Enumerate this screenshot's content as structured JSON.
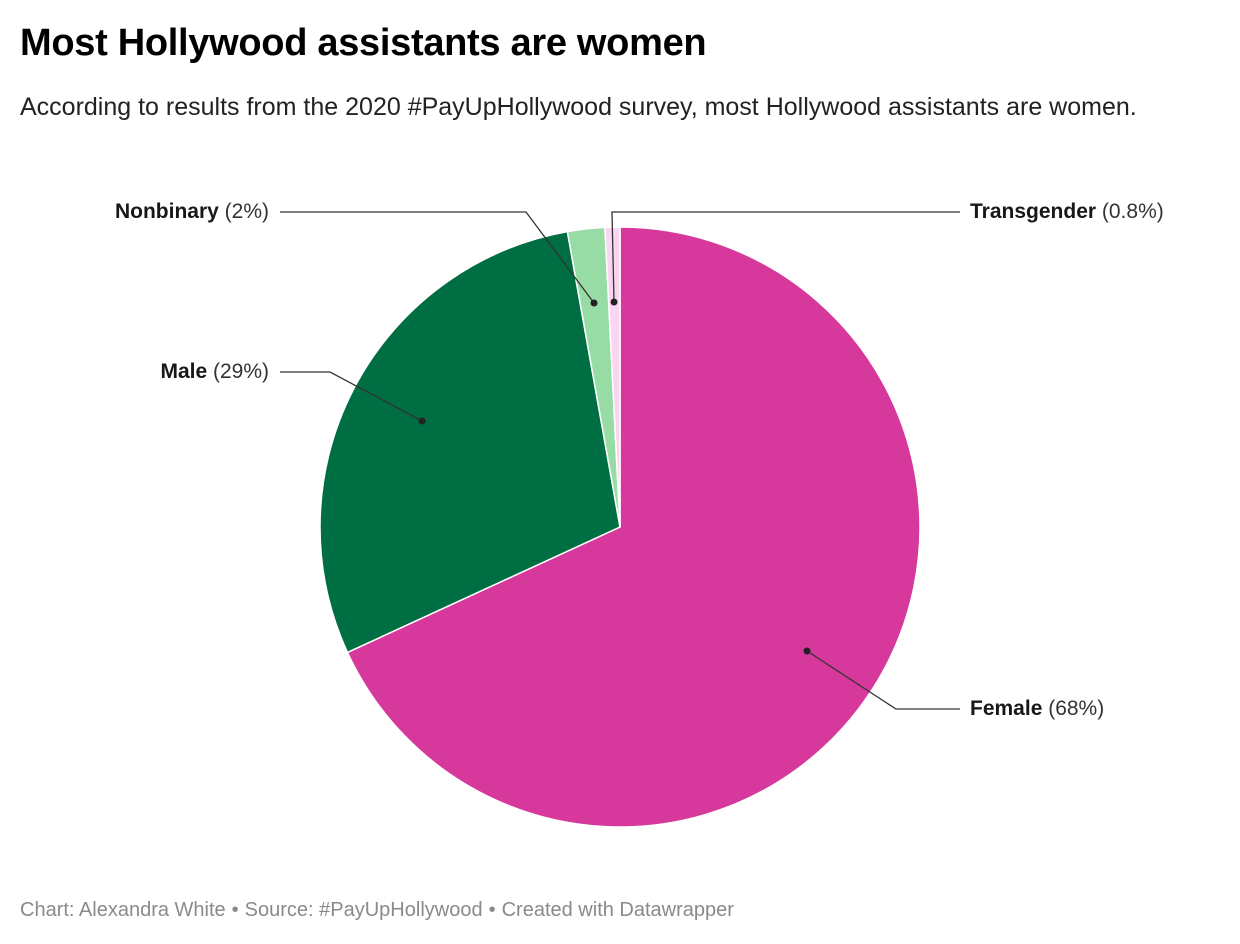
{
  "title": "Most Hollywood assistants are women",
  "subtitle": "According to results from the 2020 #PayUpHollywood survey, most Hollywood assistants are women.",
  "footer": {
    "chart_credit": "Chart: Alexandra White",
    "source": "Source: #PayUpHollywood",
    "created_with": "Created with Datawrapper",
    "separator": "•"
  },
  "chart_data": {
    "type": "pie",
    "slices": [
      {
        "label": "Female",
        "value": 68,
        "display": "(68%)",
        "color": "#d6389c"
      },
      {
        "label": "Male",
        "value": 29,
        "display": "(29%)",
        "color": "#006e43"
      },
      {
        "label": "Nonbinary",
        "value": 2,
        "display": "(2%)",
        "color": "#97dca5"
      },
      {
        "label": "Transgender",
        "value": 0.8,
        "display": "(0.8%)",
        "color": "#f9d5f2"
      }
    ]
  }
}
